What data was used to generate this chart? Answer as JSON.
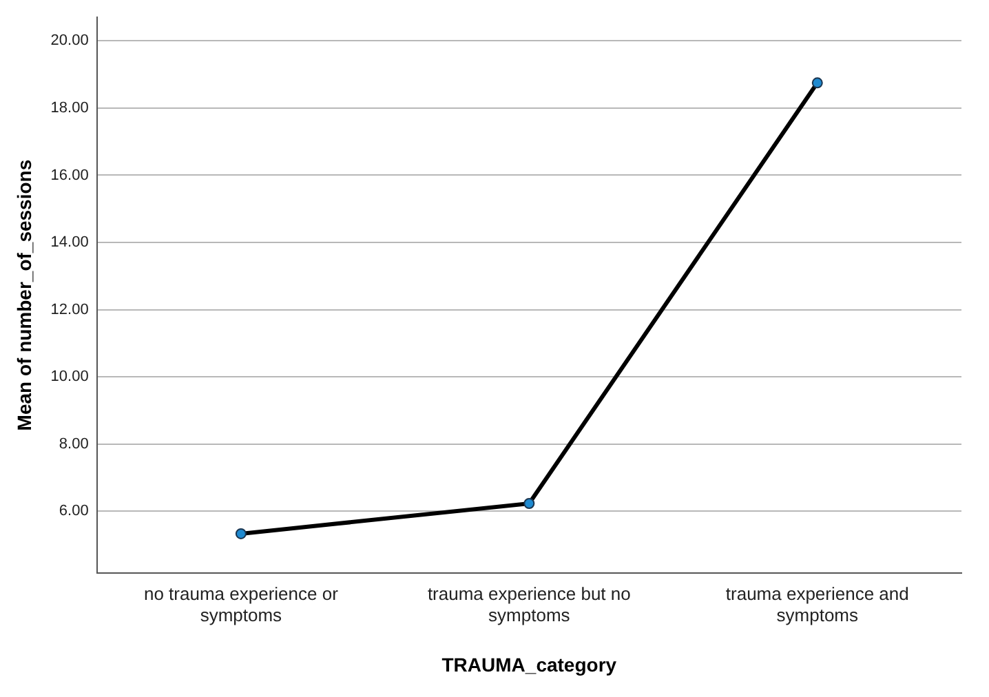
{
  "chart_data": {
    "type": "line",
    "xlabel": "TRAUMA_category",
    "ylabel": "Mean of number_of_sessions",
    "categories": [
      "no trauma experience or symptoms",
      "trauma experience but no symptoms",
      "trauma experience and symptoms"
    ],
    "series": [
      {
        "color": "#000000",
        "values": [
          5.33,
          6.23,
          18.75
        ]
      }
    ],
    "ylim": [
      4.16,
      20.7
    ],
    "yticks": [
      {
        "value": 6,
        "label": "6.00"
      },
      {
        "value": 8,
        "label": "8.00"
      },
      {
        "value": 10,
        "label": "10.00"
      },
      {
        "value": 12,
        "label": "12.00"
      },
      {
        "value": 14,
        "label": "14.00"
      },
      {
        "value": 16,
        "label": "16.00"
      },
      {
        "value": 18,
        "label": "18.00"
      },
      {
        "value": 20,
        "label": "20.00"
      }
    ],
    "grid": "y",
    "marker": "circle",
    "line_style": "solid"
  }
}
